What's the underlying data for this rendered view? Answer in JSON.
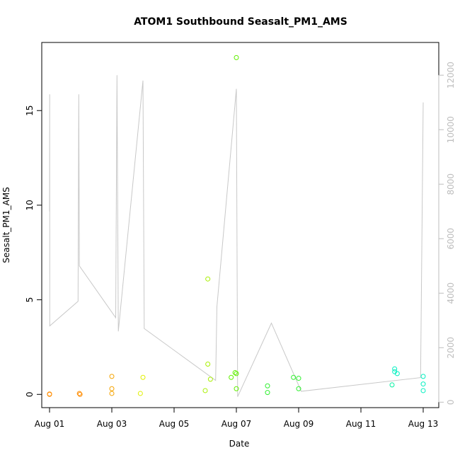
{
  "chart_data": {
    "type": "scatter",
    "title": "ATOM1 Southbound Seasalt_PM1_AMS",
    "xlabel": "Date",
    "ylabel": "Seasalt_PM1_AMS",
    "xlim": [
      "Jul 31 18:00",
      "Aug 13 12:00"
    ],
    "ylim": [
      -0.7,
      18.6
    ],
    "ylim_right": [
      -200,
      13200
    ],
    "x_ticks": [
      "Aug 01",
      "Aug 03",
      "Aug 05",
      "Aug 07",
      "Aug 09",
      "Aug 11",
      "Aug 13"
    ],
    "y_ticks": [
      "0",
      "5",
      "10",
      "15"
    ],
    "y_ticks_right": [
      "0",
      "2000",
      "4000",
      "6000",
      "8000",
      "10000",
      "12000"
    ],
    "grid": false,
    "legend": "none",
    "colors": {
      "line": "#c8c8c8",
      "axis_right": "#bdbdbd",
      "points_by_date": [
        "#ff8c00",
        "#f5a300",
        "#e0f000",
        "#a8f000",
        "#60f000",
        "#30f030",
        "#00f040",
        "#00f0a0",
        "#00f0c0"
      ]
    },
    "series": [
      {
        "type": "line",
        "axis": "right",
        "color": "#c8c8c8",
        "x": [
          "Aug 01 00:00",
          "Aug 01 00:05",
          "Aug 01 00:10",
          "Aug 01 22:00",
          "Aug 01 22:30",
          "Aug 01 23:00",
          "Aug 03 03:00",
          "Aug 03 04:00",
          "Aug 03 05:00",
          "Aug 04 00:00",
          "Aug 04 01:00",
          "Aug 06 08:00",
          "Aug 06 09:00",
          "Aug 07 00:00",
          "Aug 07 01:00",
          "Aug 08 03:00",
          "Aug 09 02:00",
          "Aug 12 22:00",
          "Aug 13 00:00"
        ],
        "y": [
          7000,
          11300,
          2800,
          3700,
          11300,
          5000,
          3100,
          12000,
          2600,
          11800,
          2700,
          800,
          3500,
          11500,
          200,
          2900,
          400,
          900,
          11000
        ]
      },
      {
        "type": "points",
        "axis": "left",
        "x": [
          "Aug 01 00:00",
          "Aug 01 00:00",
          "Aug 01 23:00",
          "Aug 01 23:30",
          "Aug 03 00:00",
          "Aug 03 00:00",
          "Aug 03 00:00",
          "Aug 03 22:00",
          "Aug 04 00:00",
          "Aug 06 00:00",
          "Aug 06 02:00",
          "Aug 06 02:00",
          "Aug 06 04:00",
          "Aug 06 20:00",
          "Aug 06 23:00",
          "Aug 07 00:00",
          "Aug 07 00:00",
          "Aug 07 00:00",
          "Aug 08 00:00",
          "Aug 08 00:00",
          "Aug 08 20:00",
          "Aug 09 00:00",
          "Aug 09 00:00",
          "Aug 12 00:00",
          "Aug 12 02:00",
          "Aug 12 02:00",
          "Aug 12 04:00",
          "Aug 13 00:00",
          "Aug 13 00:00",
          "Aug 13 00:00"
        ],
        "y": [
          0.02,
          0.0,
          0.05,
          0.0,
          0.95,
          0.3,
          0.05,
          0.05,
          0.9,
          0.2,
          6.1,
          1.6,
          0.8,
          0.9,
          1.15,
          17.8,
          1.1,
          0.3,
          0.45,
          0.1,
          0.9,
          0.85,
          0.3,
          0.5,
          1.2,
          1.35,
          1.1,
          0.95,
          0.55,
          0.2
        ]
      }
    ]
  }
}
